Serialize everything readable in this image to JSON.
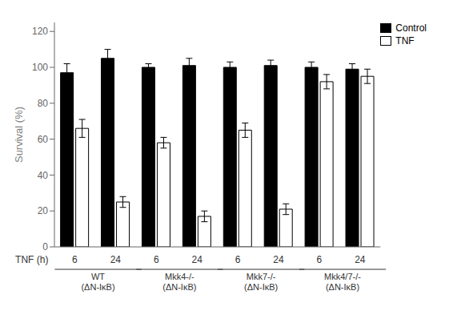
{
  "chart_data": {
    "type": "bar",
    "categories": [
      "6",
      "24",
      "6",
      "24",
      "6",
      "24",
      "6",
      "24"
    ],
    "group_labels": [
      "WT\n(ΔN-IκB)",
      "Mkk4-/-\n(ΔN-IκB)",
      "Mkk7-/-\n(ΔN-IκB)",
      "Mkk4/7-/-\n(ΔN-IκB)"
    ],
    "xlabel": "TNF (h)",
    "ylabel": "Survival (%)",
    "series": [
      {
        "name": "Control",
        "color": "#000000",
        "values": [
          97,
          105,
          100,
          101,
          100,
          101,
          100,
          99
        ],
        "errors": [
          5,
          5,
          2,
          4,
          3,
          3,
          3,
          3
        ]
      },
      {
        "name": "TNF",
        "color": "#ffffff",
        "values": [
          66,
          25,
          58,
          17,
          65,
          21,
          92,
          95
        ],
        "errors": [
          5,
          3,
          3,
          3,
          4,
          3,
          4,
          4
        ]
      }
    ],
    "ylim": [
      0,
      125
    ],
    "yticks": [
      0,
      20,
      40,
      60,
      80,
      100,
      120
    ],
    "legend": "upper right"
  }
}
